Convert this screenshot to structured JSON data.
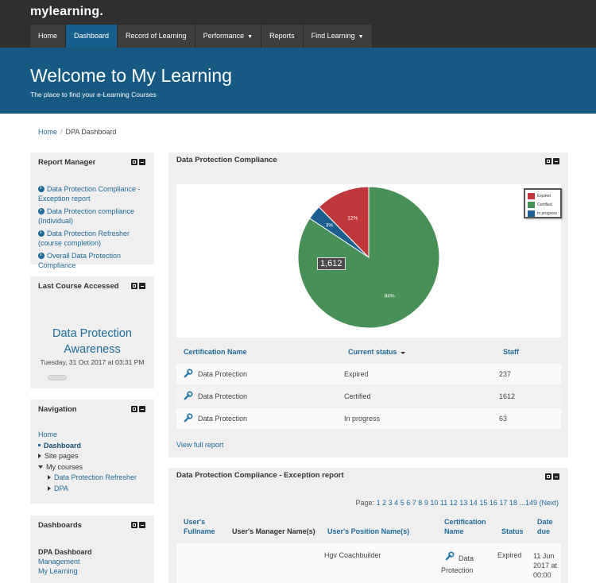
{
  "app": {
    "brand": "mylearning."
  },
  "nav": {
    "items": [
      {
        "label": "Home"
      },
      {
        "label": "Dashboard"
      },
      {
        "label": "Record of Learning"
      },
      {
        "label": "Performance"
      },
      {
        "label": "Reports"
      },
      {
        "label": "Find Learning"
      }
    ]
  },
  "banner": {
    "title": "Welcome to My Learning",
    "subtitle": "The place to find your e-Learning Courses"
  },
  "breadcrumb": {
    "home": "Home",
    "current": "DPA Dashboard"
  },
  "report_manager": {
    "title": "Report Manager",
    "items": [
      "Data Protection Compliance - Exception report",
      "Data Protection compliance (Individual)",
      "Data Protection Refresher (course completion)",
      "Overall Data Protection Compliance"
    ]
  },
  "last_course": {
    "title": "Last Course Accessed",
    "course": "Data Protection Awareness",
    "date": "Tuesday, 31 Oct 2017 at 03:31 PM"
  },
  "navigation": {
    "title": "Navigation",
    "home": "Home",
    "dashboard": "Dashboard",
    "site_pages": "Site pages",
    "my_courses": "My courses",
    "course1": "Data Protection Refresher",
    "course2": "DPA"
  },
  "dashboards": {
    "title": "Dashboards",
    "items": [
      "DPA Dashboard",
      "Management",
      "My Learning"
    ]
  },
  "compliance": {
    "title": "Data Protection Compliance",
    "tooltip": "1,612",
    "columns": [
      "Certification Name",
      "Current status",
      "Staff"
    ],
    "rows": [
      {
        "name": "Data Protection",
        "status": "Expired",
        "staff": "237"
      },
      {
        "name": "Data Protection",
        "status": "Certified",
        "staff": "1612"
      },
      {
        "name": "Data Protection",
        "status": "In progress",
        "staff": "63"
      }
    ],
    "view_full": "View full report"
  },
  "chart_data": {
    "type": "pie",
    "categories": [
      "Expired",
      "Certified",
      "In progress"
    ],
    "values": [
      237,
      1612,
      63
    ],
    "labels": [
      "12%",
      "84%",
      "3%"
    ],
    "colors": [
      "#c0383b",
      "#479058",
      "#1a5f90"
    ],
    "legend": "top-right"
  },
  "exception": {
    "title": "Data Protection Compliance - Exception report",
    "pager_label": "Page:",
    "pages": [
      "1",
      "2",
      "3",
      "4",
      "5",
      "6",
      "7",
      "8",
      "9",
      "10",
      "11",
      "12",
      "13",
      "14",
      "15",
      "16",
      "17",
      "18"
    ],
    "pager_tail": "...149",
    "next": "(Next)",
    "columns": [
      "User's Fullname",
      "User's Manager Name(s)",
      "User's Position Name(s)",
      "Certification Name",
      "Status",
      "Date due"
    ],
    "row": {
      "position": "Hgv Coachbuilder",
      "cert": "Data Protection",
      "status": "Expired",
      "due": "11 Jun 2017 at 00:00"
    }
  }
}
